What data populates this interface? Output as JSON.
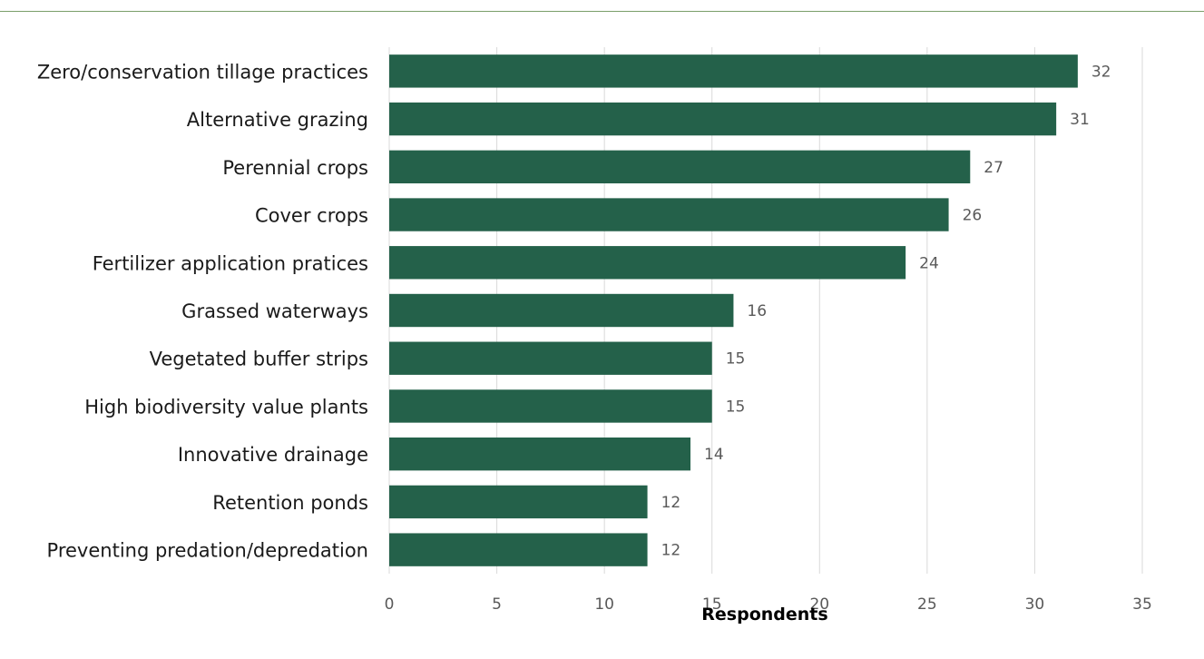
{
  "chart_data": {
    "type": "bar",
    "orientation": "horizontal",
    "title": "",
    "xlabel": "Respondents",
    "ylabel": "",
    "xlim": [
      0,
      35
    ],
    "xticks": [
      0,
      5,
      10,
      15,
      20,
      25,
      30,
      35
    ],
    "grid": true,
    "legend": "none",
    "bar_color": "#24614a",
    "categories": [
      "Zero/conservation tillage practices",
      "Alternative grazing",
      "Perennial crops",
      "Cover crops",
      "Fertilizer application pratices",
      "Grassed waterways",
      "Vegetated buffer strips",
      "High biodiversity value plants",
      "Innovative drainage",
      "Retention ponds",
      "Preventing predation/depredation"
    ],
    "values": [
      32,
      31,
      27,
      26,
      24,
      16,
      15,
      15,
      14,
      12,
      12
    ]
  },
  "colors": {
    "bar": "#24614a",
    "grid": "#d9d9d9",
    "top_rule": "#7a9e6a"
  }
}
